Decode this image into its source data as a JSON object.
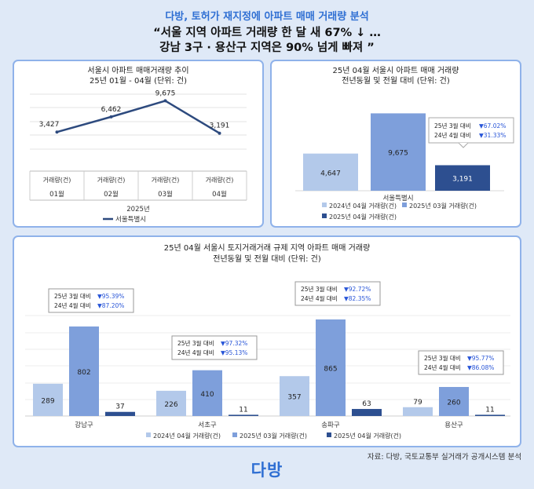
{
  "header": {
    "subtitle": "다방, 토허가 재지정에 아파트 매매 거래량 분석",
    "title_line1": "“서울 지역 아파트 거래량 한 달 새 67% ↓ …",
    "title_line2": "강남 3구 · 용산구 지역은 90% 넘게 빠져 ”"
  },
  "source": "자료: 다방, 국토교통부 실거래가 공개시스템 분석",
  "logo": "다방",
  "colors": {
    "y2024": "#b3c9ea",
    "m03": "#7e9fdb",
    "m04": "#2d4f90",
    "line": "#2d4a7e",
    "down": "#2855d8"
  },
  "chart_data": [
    {
      "type": "line",
      "title": "서울시 아파트 매매거래량 추이",
      "subtitle": "25년 01월 - 04월 (단위: 건)",
      "categories": [
        "01월",
        "02월",
        "03월",
        "04월"
      ],
      "category_metric_label": "거래량(건)",
      "year_label": "2025년",
      "series": [
        {
          "name": "서울특별시",
          "values": [
            3427,
            6462,
            9675,
            3191
          ]
        }
      ],
      "value_labels": [
        "3,427",
        "6,462",
        "9,675",
        "3,191"
      ],
      "ylim": [
        0,
        11000
      ],
      "grid": true
    },
    {
      "type": "bar",
      "title": "25년 04월 서울시 아파트 매매 거래량",
      "subtitle": "전년동월 및 전월 대비 (단위: 건)",
      "categories": [
        "서울특별시"
      ],
      "series": [
        {
          "name": "2024년 04월 거래량(건)",
          "values": [
            4647
          ]
        },
        {
          "name": "2025년 03월 거래량(건)",
          "values": [
            9675
          ]
        },
        {
          "name": "2025년 04월 거래량(건)",
          "values": [
            3191
          ]
        }
      ],
      "value_labels": [
        "4,647",
        "9,675",
        "3,191"
      ],
      "annotation": {
        "line1_label": "25년 3월 대비",
        "line1_value": "▼67.02%",
        "line2_label": "24년 4월 대비",
        "line2_value": "▼31.33%"
      },
      "ylim": [
        0,
        10500
      ]
    },
    {
      "type": "bar",
      "title": "25년 04월 서울시 토지거래거래 규제 지역 아파트 매매 거래량",
      "subtitle": "전년동월 및 전월 대비 (단위: 건)",
      "categories": [
        "강남구",
        "서초구",
        "송파구",
        "용산구"
      ],
      "series": [
        {
          "name": "2024년 04월 거래량(건)",
          "values": [
            289,
            226,
            357,
            79
          ]
        },
        {
          "name": "2025년 03월 거래량(건)",
          "values": [
            802,
            410,
            865,
            260
          ]
        },
        {
          "name": "2025년 04월 거래량(건)",
          "values": [
            37,
            11,
            63,
            11
          ]
        }
      ],
      "annotations": [
        {
          "line1_label": "25년 3월 대비",
          "line1_value": "▼95.39%",
          "line2_label": "24년 4월 대비",
          "line2_value": "▼87.20%"
        },
        {
          "line1_label": "25년 3월 대비",
          "line1_value": "▼97.32%",
          "line2_label": "24년 4월 대비",
          "line2_value": "▼95.13%"
        },
        {
          "line1_label": "25년 3월 대비",
          "line1_value": "▼92.72%",
          "line2_label": "24년 4월 대비",
          "line2_value": "▼82.35%"
        },
        {
          "line1_label": "25년 3월 대비",
          "line1_value": "▼95.77%",
          "line2_label": "24년 4월 대비",
          "line2_value": "▼86.08%"
        }
      ],
      "ylim": [
        0,
        900
      ],
      "grid": true
    }
  ]
}
